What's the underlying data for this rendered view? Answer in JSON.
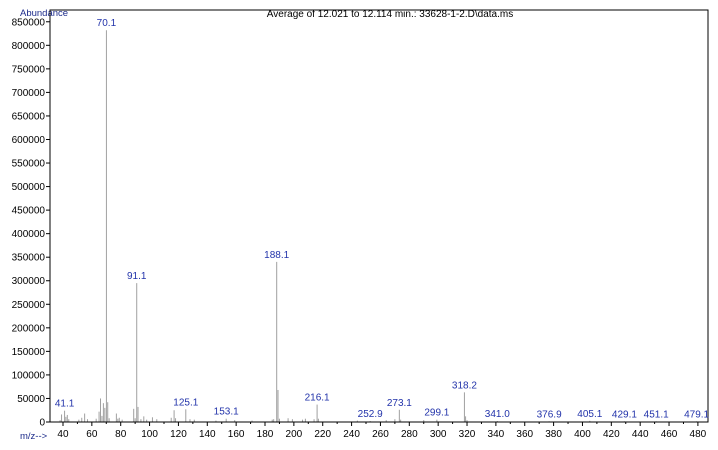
{
  "chart_data": {
    "type": "bar",
    "title": "Average of 12.021 to 12.114 min.: 33628-1-2.D\\data.ms",
    "ylabel": "Abundance",
    "xlabel": "m/z-->",
    "xlim": [
      31,
      487
    ],
    "ylim": [
      0,
      875000
    ],
    "x_ticks": [
      40,
      60,
      80,
      100,
      120,
      140,
      160,
      180,
      200,
      220,
      240,
      260,
      280,
      300,
      320,
      340,
      360,
      380,
      400,
      420,
      440,
      460,
      480
    ],
    "y_ticks": [
      0,
      50000,
      100000,
      150000,
      200000,
      250000,
      300000,
      350000,
      400000,
      450000,
      500000,
      550000,
      600000,
      650000,
      700000,
      750000,
      800000,
      850000
    ],
    "grid": false,
    "colors": {
      "bars": "#a0a0a0",
      "peak_labels": "#2233aa",
      "axis": "#000000"
    },
    "peaks": [
      {
        "mz": 38.0,
        "value": 4000
      },
      {
        "mz": 39.0,
        "value": 16000
      },
      {
        "mz": 41.1,
        "value": 24000,
        "label": "41.1"
      },
      {
        "mz": 42.0,
        "value": 11000
      },
      {
        "mz": 43.0,
        "value": 15000
      },
      {
        "mz": 44.0,
        "value": 6000
      },
      {
        "mz": 51.0,
        "value": 5000
      },
      {
        "mz": 53.0,
        "value": 9000
      },
      {
        "mz": 55.0,
        "value": 18000
      },
      {
        "mz": 57.0,
        "value": 6000
      },
      {
        "mz": 63.0,
        "value": 7000
      },
      {
        "mz": 65.0,
        "value": 22000
      },
      {
        "mz": 66.0,
        "value": 50000
      },
      {
        "mz": 67.0,
        "value": 13000
      },
      {
        "mz": 68.0,
        "value": 40000
      },
      {
        "mz": 69.0,
        "value": 30000
      },
      {
        "mz": 70.1,
        "value": 832000,
        "label": "70.1"
      },
      {
        "mz": 71.0,
        "value": 42000
      },
      {
        "mz": 72.0,
        "value": 8000
      },
      {
        "mz": 77.0,
        "value": 18000
      },
      {
        "mz": 78.0,
        "value": 7000
      },
      {
        "mz": 79.0,
        "value": 9000
      },
      {
        "mz": 81.0,
        "value": 5000
      },
      {
        "mz": 89.0,
        "value": 28000
      },
      {
        "mz": 90.0,
        "value": 8000
      },
      {
        "mz": 91.1,
        "value": 295000,
        "label": "91.1"
      },
      {
        "mz": 92.0,
        "value": 32000
      },
      {
        "mz": 94.0,
        "value": 6000
      },
      {
        "mz": 96.0,
        "value": 12000
      },
      {
        "mz": 98.0,
        "value": 5000
      },
      {
        "mz": 102.0,
        "value": 10000
      },
      {
        "mz": 105.0,
        "value": 6000
      },
      {
        "mz": 115.0,
        "value": 9000
      },
      {
        "mz": 117.0,
        "value": 25000
      },
      {
        "mz": 118.0,
        "value": 8000
      },
      {
        "mz": 125.1,
        "value": 27000,
        "label": "125.1"
      },
      {
        "mz": 128.0,
        "value": 6000
      },
      {
        "mz": 131.0,
        "value": 5000
      },
      {
        "mz": 146.0,
        "value": 3000
      },
      {
        "mz": 153.1,
        "value": 7000,
        "label": "153.1"
      },
      {
        "mz": 159.0,
        "value": 4000
      },
      {
        "mz": 171.0,
        "value": 3000
      },
      {
        "mz": 185.0,
        "value": 5000
      },
      {
        "mz": 186.0,
        "value": 6000
      },
      {
        "mz": 188.1,
        "value": 340000,
        "label": "188.1"
      },
      {
        "mz": 189.0,
        "value": 68000
      },
      {
        "mz": 190.0,
        "value": 7000
      },
      {
        "mz": 196.0,
        "value": 8000
      },
      {
        "mz": 199.0,
        "value": 6000
      },
      {
        "mz": 206.0,
        "value": 5000
      },
      {
        "mz": 208.0,
        "value": 7000
      },
      {
        "mz": 214.0,
        "value": 6000
      },
      {
        "mz": 216.1,
        "value": 37000,
        "label": "216.1"
      },
      {
        "mz": 217.0,
        "value": 7000
      },
      {
        "mz": 244.0,
        "value": 3000
      },
      {
        "mz": 252.9,
        "value": 2000,
        "label": "252.9"
      },
      {
        "mz": 264.0,
        "value": 4000
      },
      {
        "mz": 270.0,
        "value": 6000
      },
      {
        "mz": 273.1,
        "value": 26000,
        "label": "273.1"
      },
      {
        "mz": 274.0,
        "value": 5000
      },
      {
        "mz": 290.0,
        "value": 4000
      },
      {
        "mz": 299.1,
        "value": 5000,
        "label": "299.1"
      },
      {
        "mz": 318.2,
        "value": 63000,
        "label": "318.2"
      },
      {
        "mz": 319.0,
        "value": 12000
      },
      {
        "mz": 320.0,
        "value": 4000
      },
      {
        "mz": 341.0,
        "value": 2000,
        "label": "341.0"
      },
      {
        "mz": 376.9,
        "value": 1500,
        "label": "376.9"
      },
      {
        "mz": 405.1,
        "value": 2500,
        "label": "405.1"
      },
      {
        "mz": 429.1,
        "value": 1500,
        "label": "429.1"
      },
      {
        "mz": 451.1,
        "value": 1500,
        "label": "451.1"
      },
      {
        "mz": 479.1,
        "value": 1500,
        "label": "479.1"
      }
    ]
  }
}
